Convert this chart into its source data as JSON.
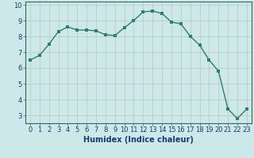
{
  "title": "",
  "xlabel": "Humidex (Indice chaleur)",
  "ylabel": "",
  "x": [
    0,
    1,
    2,
    3,
    4,
    5,
    6,
    7,
    8,
    9,
    10,
    11,
    12,
    13,
    14,
    15,
    16,
    17,
    18,
    19,
    20,
    21,
    22,
    23
  ],
  "y": [
    6.5,
    6.8,
    7.5,
    8.3,
    8.6,
    8.4,
    8.4,
    8.35,
    8.1,
    8.05,
    8.55,
    9.0,
    9.55,
    9.6,
    9.45,
    8.9,
    8.8,
    8.0,
    7.45,
    6.5,
    5.8,
    3.4,
    2.8,
    3.4
  ],
  "xlim": [
    -0.5,
    23.5
  ],
  "ylim": [
    2.5,
    10.2
  ],
  "yticks": [
    3,
    4,
    5,
    6,
    7,
    8,
    9,
    10
  ],
  "xticks": [
    0,
    1,
    2,
    3,
    4,
    5,
    6,
    7,
    8,
    9,
    10,
    11,
    12,
    13,
    14,
    15,
    16,
    17,
    18,
    19,
    20,
    21,
    22,
    23
  ],
  "line_color": "#2e7d6e",
  "marker": "s",
  "marker_size": 2.5,
  "bg_color": "#cce8e8",
  "grid_color": "#b8c8b8",
  "tick_fontsize": 6,
  "label_fontsize": 7,
  "label_color": "#1a3a6e"
}
